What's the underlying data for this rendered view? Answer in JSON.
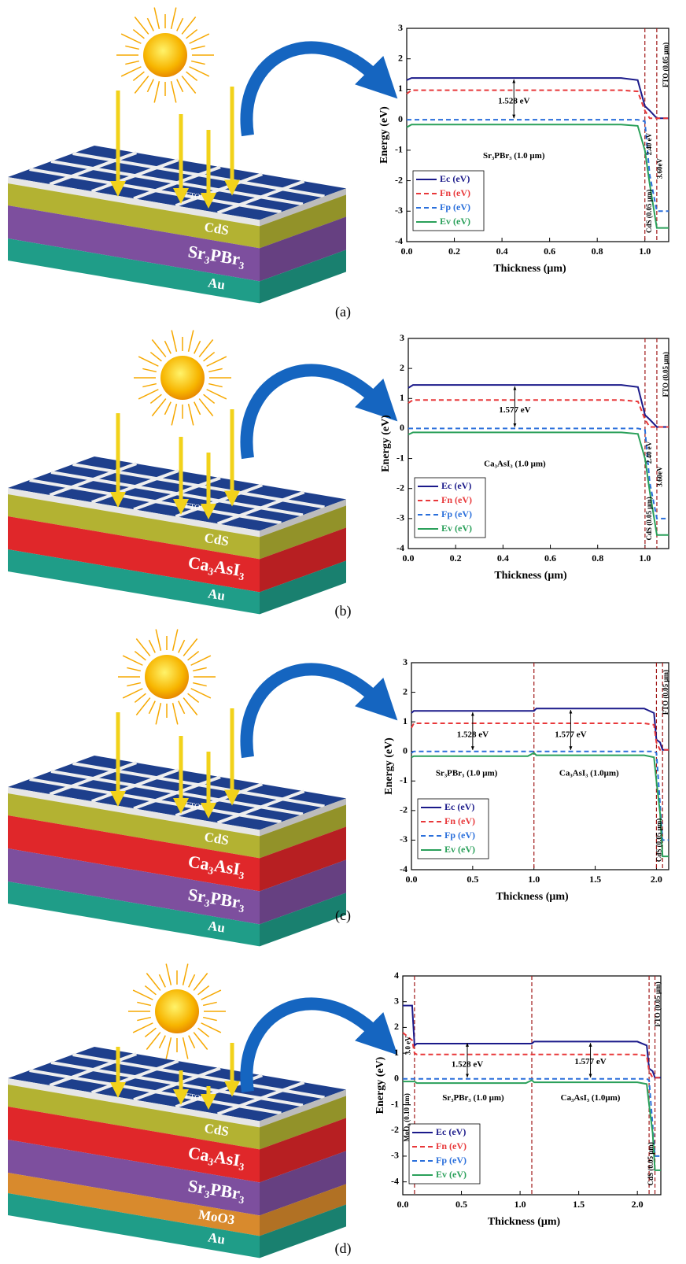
{
  "panels": [
    {
      "caption": "(a)",
      "top_label": "FTO",
      "layers": [
        {
          "name": "CdS",
          "color": "#b3b232"
        },
        {
          "name": "Sr₃PBr₃",
          "color": "#7d4f9e"
        },
        {
          "name": "Au",
          "color": "#1f9d88"
        }
      ]
    },
    {
      "caption": "(b)",
      "top_label": "FTO",
      "layers": [
        {
          "name": "CdS",
          "color": "#b3b232"
        },
        {
          "name": "Ca₃AsI₃",
          "color": "#e0272a"
        },
        {
          "name": "Au",
          "color": "#1f9d88"
        }
      ]
    },
    {
      "caption": "(c)",
      "top_label": "FTO",
      "layers": [
        {
          "name": "CdS",
          "color": "#b3b232"
        },
        {
          "name": "Ca₃AsI₃",
          "color": "#e0272a"
        },
        {
          "name": "Sr₃PBr₃",
          "color": "#7d4f9e"
        },
        {
          "name": "Au",
          "color": "#1f9d88"
        }
      ]
    },
    {
      "caption": "(d)",
      "top_label": "FTO",
      "layers": [
        {
          "name": "CdS",
          "color": "#b3b232"
        },
        {
          "name": "Ca₃AsI₃",
          "color": "#e0272a"
        },
        {
          "name": "Sr₃PBr₃",
          "color": "#7d4f9e"
        },
        {
          "name": "MoO3",
          "color": "#d88a2d"
        },
        {
          "name": "Au",
          "color": "#1f9d88"
        }
      ]
    }
  ],
  "chart_data": [
    {
      "type": "line",
      "xlabel": "Thickness (μm)",
      "ylabel": "Energy (eV)",
      "legend": "lower left",
      "xlim": [
        0,
        1.1
      ],
      "xticks": [
        {
          "value": 0,
          "label": "0.0"
        },
        0.2,
        0.4,
        0.6,
        0.8,
        {
          "value": 1,
          "label": "1.0"
        }
      ],
      "ylim": [
        -4,
        3
      ],
      "yticks": [
        -4,
        -3,
        -2,
        -1,
        0,
        1,
        2,
        3
      ],
      "interfaces": [
        1.0,
        1.05
      ],
      "x": [
        0,
        0.02,
        0.9,
        0.97,
        1.0,
        1.02,
        1.05,
        1.1
      ],
      "series": [
        {
          "name": "Ec (eV)",
          "color": "#1b1a8a",
          "style": "solid",
          "values": [
            1.3,
            1.37,
            1.37,
            1.3,
            0.45,
            0.3,
            0.05,
            0.05
          ]
        },
        {
          "name": "Fn (eV)",
          "color": "#e8383a",
          "style": "dashed",
          "values": [
            0.85,
            0.97,
            0.97,
            0.93,
            0.3,
            0.05,
            0.05,
            0.05
          ]
        },
        {
          "name": "Fp (eV)",
          "color": "#2a6fdb",
          "style": "dashed",
          "values": [
            0,
            0,
            0,
            0,
            -0.05,
            -1.8,
            -3.0,
            -3.0
          ]
        },
        {
          "name": "Ev (eV)",
          "color": "#2aa05a",
          "style": "solid",
          "values": [
            -0.25,
            -0.16,
            -0.16,
            -0.2,
            -1.0,
            -2.1,
            -3.55,
            -3.55
          ]
        }
      ],
      "annotations": [
        "1.528 eV",
        "Sr₃PBr₃ (1.0 μm)",
        "2.40 eV",
        "3.60eV",
        "CdS (0.05 μm)",
        "FTO (0.05 μm)"
      ]
    },
    {
      "type": "line",
      "xlabel": "Thickness (μm)",
      "ylabel": "Energy (eV)",
      "legend": "lower left",
      "xlim": [
        0,
        1.1
      ],
      "xticks": [
        {
          "value": 0,
          "label": "0.0"
        },
        0.2,
        0.4,
        0.6,
        0.8,
        {
          "value": 1,
          "label": "1.0"
        }
      ],
      "ylim": [
        -4,
        3
      ],
      "yticks": [
        -4,
        -3,
        -2,
        -1,
        0,
        1,
        2,
        3
      ],
      "interfaces": [
        1.0,
        1.05
      ],
      "x": [
        0,
        0.02,
        0.9,
        0.97,
        1.0,
        1.02,
        1.05,
        1.1
      ],
      "series": [
        {
          "name": "Ec (eV)",
          "color": "#1b1a8a",
          "style": "solid",
          "values": [
            1.35,
            1.45,
            1.45,
            1.38,
            0.45,
            0.3,
            0.05,
            0.05
          ]
        },
        {
          "name": "Fn (eV)",
          "color": "#e8383a",
          "style": "dashed",
          "values": [
            0.85,
            0.95,
            0.95,
            0.9,
            0.3,
            0.05,
            0.05,
            0.05
          ]
        },
        {
          "name": "Fp (eV)",
          "color": "#2a6fdb",
          "style": "dashed",
          "values": [
            0,
            0,
            0,
            0,
            -0.05,
            -1.8,
            -3.0,
            -3.0
          ]
        },
        {
          "name": "Ev (eV)",
          "color": "#2aa05a",
          "style": "solid",
          "values": [
            -0.2,
            -0.13,
            -0.13,
            -0.18,
            -1.0,
            -2.1,
            -3.55,
            -3.55
          ]
        }
      ],
      "annotations": [
        "1.577 eV",
        "Ca₃AsI₃ (1.0 μm)",
        "2.40 eV",
        "3.60eV",
        "CdS (0.05 μm)",
        "FTO (0.05 μm)"
      ]
    },
    {
      "type": "line",
      "xlabel": "Thickness (μm)",
      "ylabel": "Energy (eV)",
      "legend": "lower left",
      "xlim": [
        0,
        2.1
      ],
      "xticks": [
        {
          "value": 0,
          "label": "0.0"
        },
        0.5,
        {
          "value": 1,
          "label": "1.0"
        },
        1.5,
        {
          "value": 2,
          "label": "2.0"
        }
      ],
      "ylim": [
        -4,
        3
      ],
      "yticks": [
        -4,
        -3,
        -2,
        -1,
        0,
        1,
        2,
        3
      ],
      "interfaces": [
        1.0,
        2.0,
        2.05
      ],
      "x": [
        0,
        0.02,
        0.95,
        1.0,
        1.02,
        1.9,
        1.98,
        2.0,
        2.03,
        2.05,
        2.1
      ],
      "series": [
        {
          "name": "Ec (eV)",
          "color": "#1b1a8a",
          "style": "solid",
          "values": [
            1.3,
            1.37,
            1.37,
            1.37,
            1.45,
            1.45,
            1.3,
            0.4,
            0.3,
            0.05,
            0.05
          ]
        },
        {
          "name": "Fn (eV)",
          "color": "#e8383a",
          "style": "dashed",
          "values": [
            0.8,
            0.95,
            0.95,
            0.95,
            0.95,
            0.95,
            0.9,
            0.3,
            0.05,
            0.05,
            0.05
          ]
        },
        {
          "name": "Fp (eV)",
          "color": "#2a6fdb",
          "style": "dashed",
          "values": [
            -0.05,
            0,
            0,
            0,
            0,
            0,
            0,
            -0.05,
            -1.8,
            -3.0,
            -3.0
          ]
        },
        {
          "name": "Ev (eV)",
          "color": "#2aa05a",
          "style": "solid",
          "values": [
            -0.2,
            -0.16,
            -0.16,
            -0.05,
            -0.13,
            -0.13,
            -0.2,
            -1.0,
            -2.1,
            -3.55,
            -3.55
          ]
        }
      ],
      "annotations": [
        "1.528 eV",
        "1.577 eV",
        "Sr₃PBr₃ (1.0 μm)",
        "Ca₃AsI₃  (1.0μm)",
        "CdS (0.05 μm)",
        "FTO (0.05 μm)"
      ]
    },
    {
      "type": "line",
      "xlabel": "Thickness (μm)",
      "ylabel": "Energy (eV)",
      "legend": "lower left",
      "xlim": [
        0,
        2.2
      ],
      "xticks": [
        {
          "value": 0,
          "label": "0.0"
        },
        0.5,
        {
          "value": 1,
          "label": "1.0"
        },
        1.5,
        {
          "value": 2,
          "label": "2.0"
        }
      ],
      "ylim": [
        -4.5,
        4
      ],
      "yticks": [
        -4,
        -3,
        -2,
        -1,
        0,
        1,
        2,
        3,
        4
      ],
      "interfaces": [
        0.1,
        1.1,
        2.1,
        2.15
      ],
      "x": [
        0,
        0.08,
        0.1,
        0.12,
        1.05,
        1.1,
        1.12,
        2.0,
        2.08,
        2.1,
        2.13,
        2.15,
        2.2
      ],
      "series": [
        {
          "name": "Ec (eV)",
          "color": "#1b1a8a",
          "style": "solid",
          "values": [
            2.85,
            2.85,
            1.3,
            1.37,
            1.37,
            1.37,
            1.45,
            1.45,
            1.3,
            0.4,
            0.3,
            0.05,
            0.05
          ]
        },
        {
          "name": "Fn (eV)",
          "color": "#e8383a",
          "style": "dashed",
          "values": [
            1.8,
            1.5,
            1.0,
            0.95,
            0.95,
            0.95,
            0.95,
            0.95,
            0.9,
            0.3,
            0.05,
            0.05,
            0.05
          ]
        },
        {
          "name": "Fp (eV)",
          "color": "#2a6fdb",
          "style": "dashed",
          "values": [
            0,
            0,
            0,
            0,
            0,
            0,
            0,
            0,
            0,
            -0.05,
            -1.8,
            -3.0,
            -3.0
          ]
        },
        {
          "name": "Ev (eV)",
          "color": "#2aa05a",
          "style": "solid",
          "values": [
            -0.1,
            -0.1,
            -0.1,
            -0.16,
            -0.16,
            -0.05,
            -0.13,
            -0.13,
            -0.2,
            -1.0,
            -2.1,
            -3.55,
            -3.55
          ]
        }
      ],
      "annotations": [
        "3.0 eV",
        "MoO₃ (0.10 μm)",
        "1.528 eV",
        "1.577 eV",
        "Sr₃PBr₃ (1.0 μm)",
        "Ca₃AsI₃  (1.0μm)",
        "CdS (0.05 μm)",
        "FTO (0.05 μm)"
      ]
    }
  ]
}
